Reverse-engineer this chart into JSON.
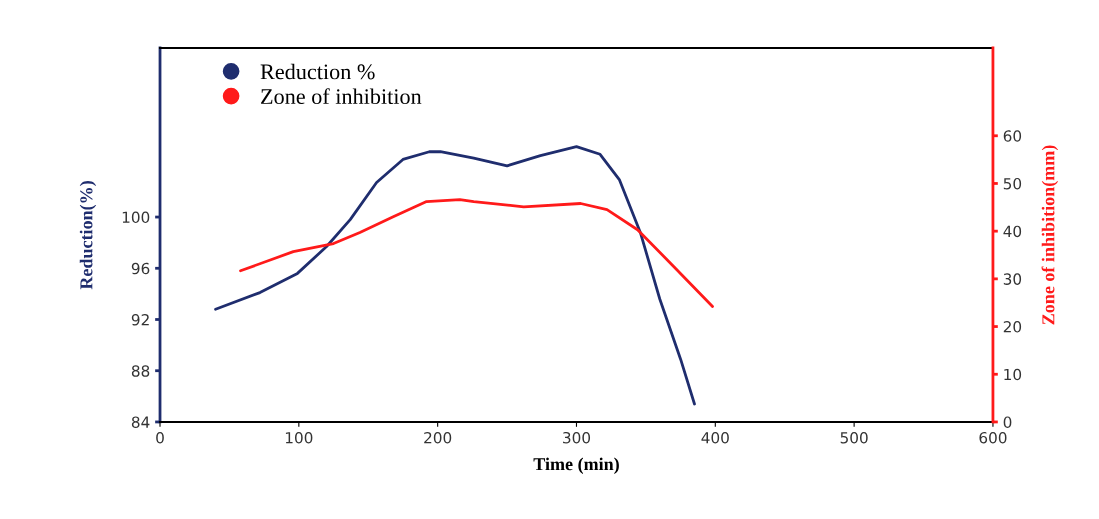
{
  "chart_data": {
    "type": "line",
    "xlabel": "Time (min)",
    "ylabel": "Reduction(%)",
    "y2label": "Zone of inhibition(mm)",
    "xlim": [
      0,
      600
    ],
    "xticks": [
      0,
      100,
      200,
      300,
      400,
      500,
      600
    ],
    "ylim": [
      84,
      113.2
    ],
    "yticks": [
      84,
      88,
      92,
      96,
      100
    ],
    "y2lim": [
      0,
      78.4
    ],
    "y2ticks": [
      0,
      10,
      20,
      30,
      40,
      50,
      60
    ],
    "legend": "top left",
    "grid": false,
    "marker": "none",
    "line_style": "solid",
    "series": [
      {
        "name": "Reduction %",
        "color": "#1f2d6e",
        "x": [
          40,
          72,
          99,
          120,
          137,
          156,
          175,
          194,
          202,
          226,
          250,
          274,
          300,
          317,
          331,
          346,
          360,
          375,
          385
        ],
        "values": [
          92.8,
          94.1,
          95.6,
          97.7,
          99.8,
          102.7,
          104.5,
          105.1,
          105.1,
          104.6,
          104.0,
          104.8,
          105.5,
          104.9,
          102.9,
          98.8,
          93.6,
          88.9,
          85.4
        ]
      },
      {
        "name": "Zone of inhibition",
        "color": "#ff1a1a",
        "axis": "y2",
        "x": [
          58,
          96,
          125,
          144,
          168,
          192,
          216,
          226,
          262,
          303,
          322,
          344,
          370,
          398
        ],
        "values": [
          31.7,
          35.7,
          37.4,
          39.7,
          43.0,
          46.2,
          46.6,
          46.2,
          45.1,
          45.8,
          44.5,
          40.3,
          32.6,
          24.2
        ]
      }
    ]
  }
}
